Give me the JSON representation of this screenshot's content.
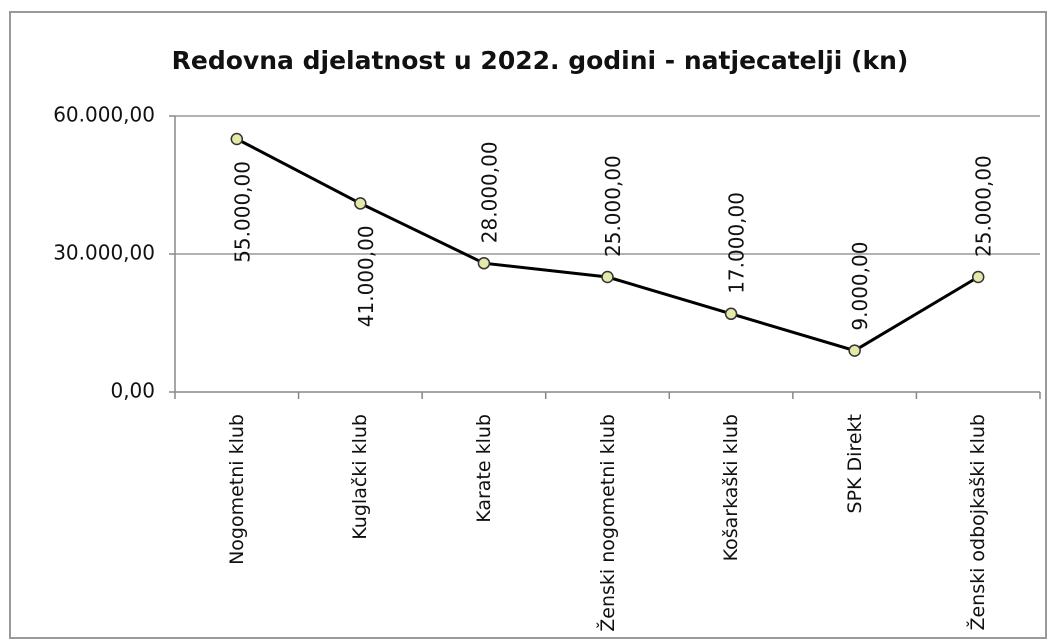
{
  "chart_data": {
    "type": "line",
    "title": "Redovna djelatnost u 2022. godini - natjecatelji (kn)",
    "categories": [
      "Nogometni klub",
      "Kuglački klub",
      "Karate klub",
      "Ženski nogometni klub",
      "Košarkaški klub",
      "SPK Direkt",
      "Ženski odbojkaški klub"
    ],
    "series": [
      {
        "name": "natjecatelji",
        "color": "#000000",
        "values": [
          55000,
          41000,
          28000,
          25000,
          17000,
          9000,
          25000
        ],
        "value_labels": [
          "55.000,00",
          "41.000,00",
          "28.000,00",
          "25.000,00",
          "17.000,00",
          "9.000,00",
          "25.000,00"
        ]
      }
    ],
    "marker_color": "#e4e8a8",
    "ylim": [
      0,
      60000
    ],
    "yticks": [
      {
        "value": 0,
        "label": "0,00"
      },
      {
        "value": 30000,
        "label": "30.000,00"
      },
      {
        "value": 60000,
        "label": "60.000,00"
      }
    ],
    "grid": true
  }
}
